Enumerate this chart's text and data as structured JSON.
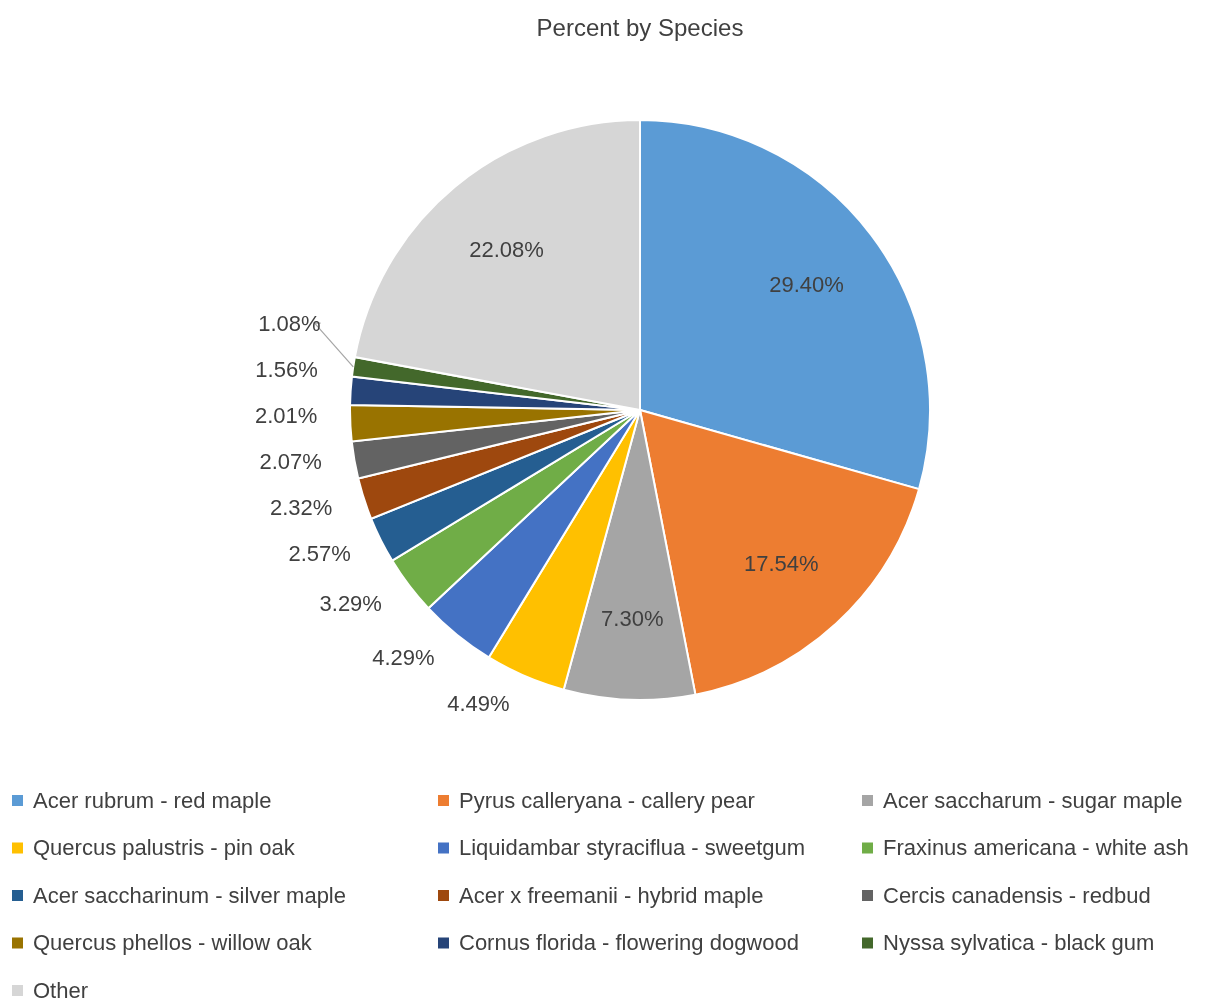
{
  "chart_data": {
    "type": "pie",
    "title": "Percent by Species",
    "categories": [
      "Acer rubrum - red maple",
      "Pyrus calleryana - callery pear",
      "Acer saccharum - sugar maple",
      "Quercus palustris - pin oak",
      "Liquidambar styraciflua - sweetgum",
      "Fraxinus americana - white ash",
      "Acer saccharinum - silver maple",
      "Acer x freemanii - hybrid maple",
      "Cercis canadensis - redbud",
      "Quercus phellos - willow oak",
      "Cornus florida - flowering dogwood",
      "Nyssa sylvatica - black gum",
      "Other"
    ],
    "values": [
      29.4,
      17.54,
      7.3,
      4.49,
      4.29,
      3.29,
      2.57,
      2.32,
      2.07,
      2.01,
      1.56,
      1.08,
      22.08
    ],
    "value_labels": [
      "29.40%",
      "17.54%",
      "7.30%",
      "4.49%",
      "4.29%",
      "3.29%",
      "2.57%",
      "2.32%",
      "2.07%",
      "2.01%",
      "1.56%",
      "1.08%",
      "22.08%"
    ],
    "colors": [
      "#5b9bd5",
      "#ed7d31",
      "#a5a5a5",
      "#ffc000",
      "#4472c4",
      "#70ad47",
      "#255e91",
      "#9e480e",
      "#636363",
      "#997300",
      "#264478",
      "#43682b",
      "#d6d6d6"
    ],
    "legend": "bottom"
  }
}
